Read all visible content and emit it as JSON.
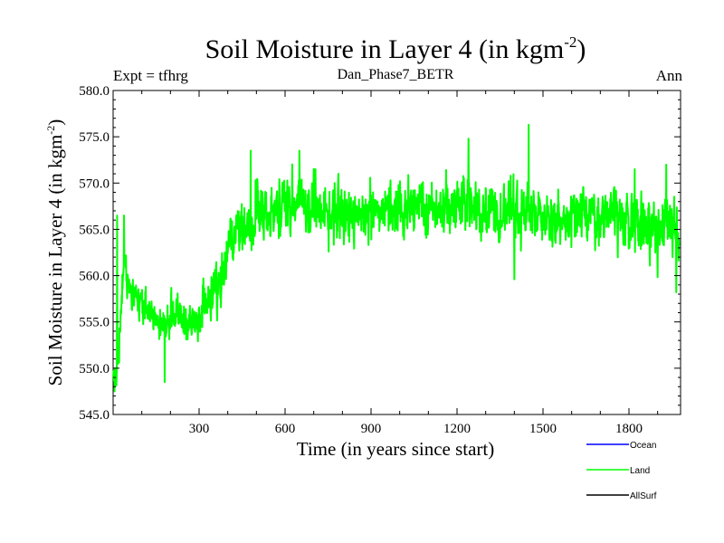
{
  "chart_data": {
    "type": "line",
    "title": "Soil Moisture in Layer 4 (in kgm",
    "title_sup": "-2",
    "title_close": ")",
    "subtitle_left": "Expt = tfhrg",
    "subtitle_center": "Dan_Phase7_BETR",
    "subtitle_right": "Ann",
    "xlabel": "Time (in years since start)",
    "ylabel": "Soil Moisture in Layer 4 (in kgm",
    "ylabel_sup": "-2",
    "ylabel_close": ")",
    "xlim": [
      0,
      1980
    ],
    "ylim": [
      545.0,
      580.0
    ],
    "xticks": [
      300,
      600,
      900,
      1200,
      1500,
      1800
    ],
    "xtick_labels": [
      "300",
      "600",
      "900",
      "1200",
      "1500",
      "1800"
    ],
    "yticks": [
      545,
      550,
      555,
      560,
      565,
      570,
      575,
      580
    ],
    "ytick_labels": [
      "545.0",
      "550.0",
      "555.0",
      "560.0",
      "565.0",
      "570.0",
      "575.0",
      "580.0"
    ],
    "grid": false,
    "series": [
      {
        "name": "Ocean",
        "color": "#0000ff",
        "values": []
      },
      {
        "name": "AllSurf",
        "color": "#000000",
        "values": []
      },
      {
        "name": "Land",
        "color": "#00ff00",
        "x": [
          0,
          10,
          20,
          30,
          40,
          50,
          60,
          80,
          100,
          120,
          140,
          160,
          180,
          200,
          220,
          250,
          280,
          300,
          320,
          350,
          380,
          400,
          420,
          450,
          480,
          500,
          550,
          600,
          650,
          700,
          750,
          800,
          900,
          1000,
          1100,
          1200,
          1300,
          1400,
          1450,
          1500,
          1600,
          1700,
          1800,
          1850,
          1900,
          1950,
          1975
        ],
        "values": [
          548.5,
          549.0,
          552.0,
          557.0,
          562.0,
          559.0,
          557.5,
          558.0,
          557.0,
          556.5,
          555.5,
          556.0,
          554.5,
          555.0,
          556.5,
          555.0,
          554.5,
          556.0,
          557.0,
          557.5,
          559.5,
          562.0,
          564.0,
          565.0,
          566.5,
          567.0,
          566.5,
          567.5,
          568.0,
          567.5,
          567.0,
          566.5,
          567.0,
          567.5,
          567.0,
          567.5,
          567.0,
          566.5,
          567.0,
          566.0,
          566.0,
          566.5,
          566.0,
          565.5,
          565.0,
          565.5,
          565.0
        ],
        "amplitude": [
          1.5,
          1.5,
          1.8,
          2.2,
          2.5,
          1.8,
          1.6,
          1.6,
          1.8,
          1.8,
          1.8,
          2.0,
          2.2,
          2.0,
          1.8,
          1.8,
          1.8,
          2.0,
          2.2,
          2.4,
          2.6,
          2.6,
          2.8,
          3.0,
          3.0,
          3.0,
          3.0,
          3.0,
          3.0,
          2.8,
          2.8,
          2.8,
          2.8,
          2.8,
          2.8,
          2.8,
          2.8,
          2.8,
          2.8,
          2.8,
          2.8,
          2.8,
          2.8,
          3.0,
          3.2,
          3.2,
          3.2
        ],
        "extremes": [
          {
            "x": 5,
            "y": 547.5
          },
          {
            "x": 14,
            "y": 566.5
          },
          {
            "x": 38,
            "y": 566.5
          },
          {
            "x": 180,
            "y": 548.5
          },
          {
            "x": 480,
            "y": 573.5
          },
          {
            "x": 650,
            "y": 573.5
          },
          {
            "x": 1450,
            "y": 576.3
          },
          {
            "x": 1240,
            "y": 574.8
          },
          {
            "x": 1400,
            "y": 559.6
          },
          {
            "x": 1930,
            "y": 572.0
          },
          {
            "x": 1965,
            "y": 558.2
          },
          {
            "x": 1820,
            "y": 571.5
          }
        ]
      }
    ],
    "legend": [
      {
        "label": "Ocean",
        "color": "#0000ff"
      },
      {
        "label": "Land",
        "color": "#00ff00"
      },
      {
        "label": "AllSurf",
        "color": "#000000"
      }
    ],
    "legend_position": "bottom-right"
  }
}
